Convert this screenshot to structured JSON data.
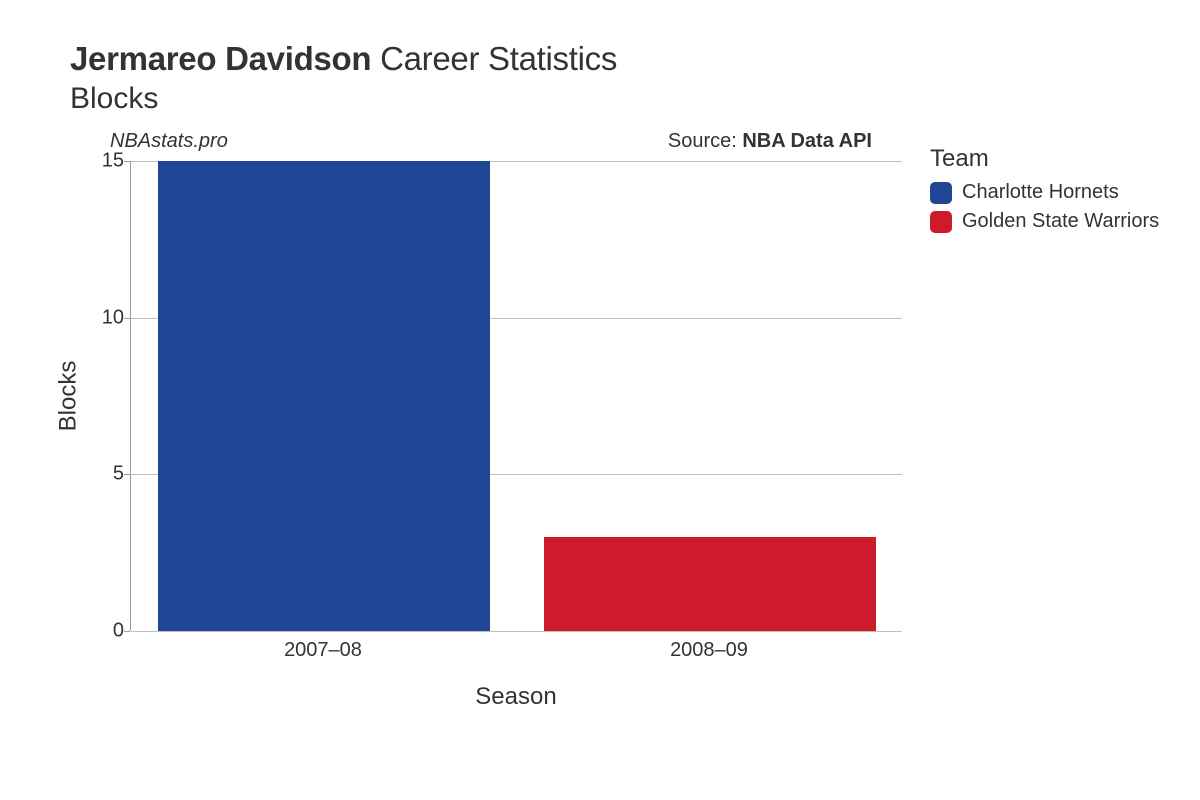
{
  "title": {
    "player_name": "Jermareo Davidson",
    "suffix": "Career Statistics",
    "metric": "Blocks"
  },
  "meta": {
    "site": "NBAstats.pro",
    "source_prefix": "Source: ",
    "source_name": "NBA Data API"
  },
  "chart": {
    "type": "bar",
    "x_label": "Season",
    "y_label": "Blocks",
    "categories": [
      "2007–08",
      "2008–09"
    ],
    "values": [
      15,
      3
    ],
    "bar_colors": [
      "#1f4696",
      "#ce1b2b"
    ],
    "ylim": [
      0,
      15
    ],
    "ytick_step": 5,
    "yticks": [
      0,
      5,
      10,
      15
    ],
    "bar_width": 0.86,
    "background_color": "#ffffff",
    "grid_color": "#bfbfbf",
    "axis_color": "#999999",
    "tick_fontsize": 20,
    "axis_title_fontsize": 24
  },
  "legend": {
    "title": "Team",
    "items": [
      {
        "label": "Charlotte Hornets",
        "color": "#1f4696"
      },
      {
        "label": "Golden State Warriors",
        "color": "#ce1b2b"
      }
    ]
  }
}
